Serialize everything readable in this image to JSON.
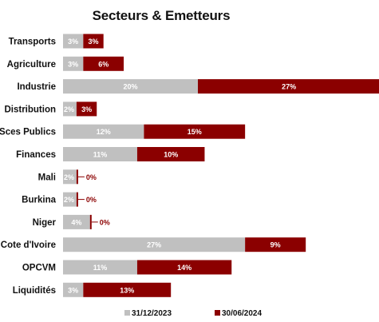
{
  "chart_data": {
    "type": "bar",
    "orientation": "horizontal",
    "stacked": true,
    "title": "Secteurs & Emetteurs",
    "categories": [
      "Transports",
      "Agriculture",
      "Industrie",
      "Distribution",
      "Sces Publics",
      "Finances",
      "Mali",
      "Burkina",
      "Niger",
      "Cote d'Ivoire",
      "OPCVM",
      "Liquidités"
    ],
    "series": [
      {
        "name": "31/12/2023",
        "color": "#c0c0c0",
        "values": [
          3,
          3,
          20,
          2,
          12,
          11,
          2,
          2,
          4,
          27,
          11,
          3
        ],
        "labels": [
          "3%",
          "3%",
          "20%",
          "2%",
          "12%",
          "11%",
          "2%",
          "2%",
          "4%",
          "27%",
          "11%",
          "3%"
        ]
      },
      {
        "name": "30/06/2024",
        "color": "#8b0000",
        "values": [
          3,
          6,
          27,
          3,
          15,
          10,
          0,
          0,
          0,
          9,
          14,
          13
        ],
        "labels": [
          "3%",
          "6%",
          "27%",
          "3%",
          "15%",
          "10%",
          "0%",
          "0%",
          "0%",
          "9%",
          "14%",
          "13%"
        ]
      }
    ],
    "grid": false,
    "legend_position": "bottom"
  }
}
